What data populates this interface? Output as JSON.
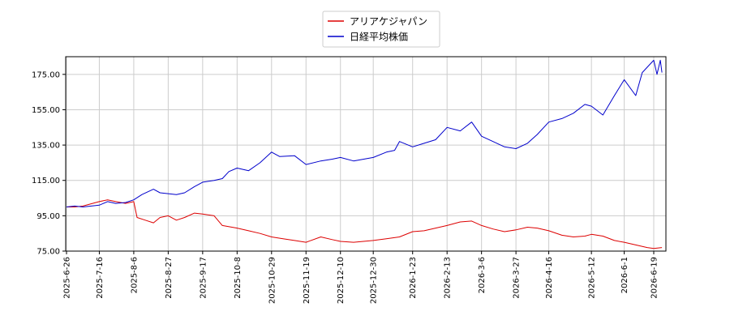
{
  "chart_data": {
    "type": "line",
    "title": "",
    "xlabel": "",
    "ylabel": "",
    "ylim": [
      75,
      185
    ],
    "yticks": [
      "75.00",
      "95.00",
      "115.00",
      "135.00",
      "155.00",
      "175.00"
    ],
    "xticks": [
      "2025-6-26",
      "2025-7-16",
      "2025-8-6",
      "2025-8-27",
      "2025-9-17",
      "2025-10-8",
      "2025-10-29",
      "2025-11-19",
      "2025-12-10",
      "2025-12-30",
      "2026-1-23",
      "2026-2-13",
      "2026-3-6",
      "2026-3-27",
      "2026-4-16",
      "2026-5-12",
      "2026-6-1",
      "2026-6-19"
    ],
    "grid": true,
    "legend_position": "top-center",
    "series": [
      {
        "name": "アリアケジャパン",
        "color": "#dd0000",
        "values": [
          [
            "2025-6-26",
            100
          ],
          [
            "2025-7-1",
            100
          ],
          [
            "2025-7-6",
            100.5
          ],
          [
            "2025-7-16",
            103
          ],
          [
            "2025-7-21",
            104
          ],
          [
            "2025-7-26",
            103
          ],
          [
            "2025-8-1",
            102
          ],
          [
            "2025-8-6",
            103
          ],
          [
            "2025-8-8",
            94
          ],
          [
            "2025-8-13",
            92.5
          ],
          [
            "2025-8-18",
            91
          ],
          [
            "2025-8-22",
            94
          ],
          [
            "2025-8-27",
            95
          ],
          [
            "2025-9-1",
            92.5
          ],
          [
            "2025-9-6",
            94
          ],
          [
            "2025-9-12",
            96.5
          ],
          [
            "2025-9-17",
            96
          ],
          [
            "2025-9-24",
            95
          ],
          [
            "2025-9-29",
            89.5
          ],
          [
            "2025-10-8",
            88
          ],
          [
            "2025-10-15",
            86.5
          ],
          [
            "2025-10-22",
            85
          ],
          [
            "2025-10-29",
            83
          ],
          [
            "2025-11-5",
            82
          ],
          [
            "2025-11-12",
            81
          ],
          [
            "2025-11-19",
            80
          ],
          [
            "2025-11-28",
            83
          ],
          [
            "2025-12-5",
            81.5
          ],
          [
            "2025-12-10",
            80.5
          ],
          [
            "2025-12-18",
            80
          ],
          [
            "2025-12-30",
            81
          ],
          [
            "2026-1-7",
            82
          ],
          [
            "2026-1-15",
            83
          ],
          [
            "2026-1-23",
            86
          ],
          [
            "2026-1-30",
            86.5
          ],
          [
            "2026-2-6",
            88
          ],
          [
            "2026-2-13",
            89.5
          ],
          [
            "2026-2-21",
            91.5
          ],
          [
            "2026-2-28",
            92
          ],
          [
            "2026-3-6",
            89.5
          ],
          [
            "2026-3-13",
            87.5
          ],
          [
            "2026-3-20",
            86
          ],
          [
            "2026-3-27",
            87
          ],
          [
            "2026-4-3",
            88.5
          ],
          [
            "2026-4-9",
            88
          ],
          [
            "2026-4-16",
            86.5
          ],
          [
            "2026-4-24",
            84
          ],
          [
            "2026-5-1",
            83
          ],
          [
            "2026-5-8",
            83.5
          ],
          [
            "2026-5-12",
            84.5
          ],
          [
            "2026-5-19",
            83.5
          ],
          [
            "2026-5-26",
            81
          ],
          [
            "2026-6-1",
            80
          ],
          [
            "2026-6-8",
            78.5
          ],
          [
            "2026-6-15",
            77
          ],
          [
            "2026-6-19",
            76.5
          ],
          [
            "2026-6-24",
            77
          ]
        ]
      },
      {
        "name": "日経平均株価",
        "color": "#0000cc",
        "values": [
          [
            "2025-6-26",
            100
          ],
          [
            "2025-7-1",
            100.5
          ],
          [
            "2025-7-6",
            100
          ],
          [
            "2025-7-16",
            101
          ],
          [
            "2025-7-21",
            103
          ],
          [
            "2025-7-26",
            102
          ],
          [
            "2025-8-1",
            102.5
          ],
          [
            "2025-8-6",
            104
          ],
          [
            "2025-8-11",
            107
          ],
          [
            "2025-8-18",
            110
          ],
          [
            "2025-8-22",
            108
          ],
          [
            "2025-8-27",
            107.5
          ],
          [
            "2025-9-1",
            107
          ],
          [
            "2025-9-6",
            108
          ],
          [
            "2025-9-12",
            111.5
          ],
          [
            "2025-9-17",
            114
          ],
          [
            "2025-9-24",
            115
          ],
          [
            "2025-9-29",
            116
          ],
          [
            "2025-10-3",
            120
          ],
          [
            "2025-10-8",
            122
          ],
          [
            "2025-10-15",
            120.5
          ],
          [
            "2025-10-22",
            125
          ],
          [
            "2025-10-29",
            131
          ],
          [
            "2025-11-3",
            128.5
          ],
          [
            "2025-11-12",
            129
          ],
          [
            "2025-11-19",
            124
          ],
          [
            "2025-11-28",
            126
          ],
          [
            "2025-12-5",
            127
          ],
          [
            "2025-12-10",
            128
          ],
          [
            "2025-12-18",
            126
          ],
          [
            "2025-12-30",
            128
          ],
          [
            "2026-1-7",
            131
          ],
          [
            "2026-1-12",
            132
          ],
          [
            "2026-1-15",
            137
          ],
          [
            "2026-1-23",
            134
          ],
          [
            "2026-1-30",
            136
          ],
          [
            "2026-2-6",
            138
          ],
          [
            "2026-2-13",
            145
          ],
          [
            "2026-2-21",
            143
          ],
          [
            "2026-2-28",
            148
          ],
          [
            "2026-3-6",
            140
          ],
          [
            "2026-3-13",
            137
          ],
          [
            "2026-3-20",
            134
          ],
          [
            "2026-3-27",
            133
          ],
          [
            "2026-4-3",
            136
          ],
          [
            "2026-4-9",
            141
          ],
          [
            "2026-4-16",
            148
          ],
          [
            "2026-4-24",
            150
          ],
          [
            "2026-5-1",
            153
          ],
          [
            "2026-5-8",
            158
          ],
          [
            "2026-5-12",
            157
          ],
          [
            "2026-5-19",
            152
          ],
          [
            "2026-5-26",
            163
          ],
          [
            "2026-6-1",
            172
          ],
          [
            "2026-6-8",
            163
          ],
          [
            "2026-6-12",
            176
          ],
          [
            "2026-6-16",
            180
          ],
          [
            "2026-6-19",
            183
          ],
          [
            "2026-6-21",
            175
          ],
          [
            "2026-6-23",
            183
          ],
          [
            "2026-6-24",
            176
          ]
        ]
      }
    ]
  }
}
